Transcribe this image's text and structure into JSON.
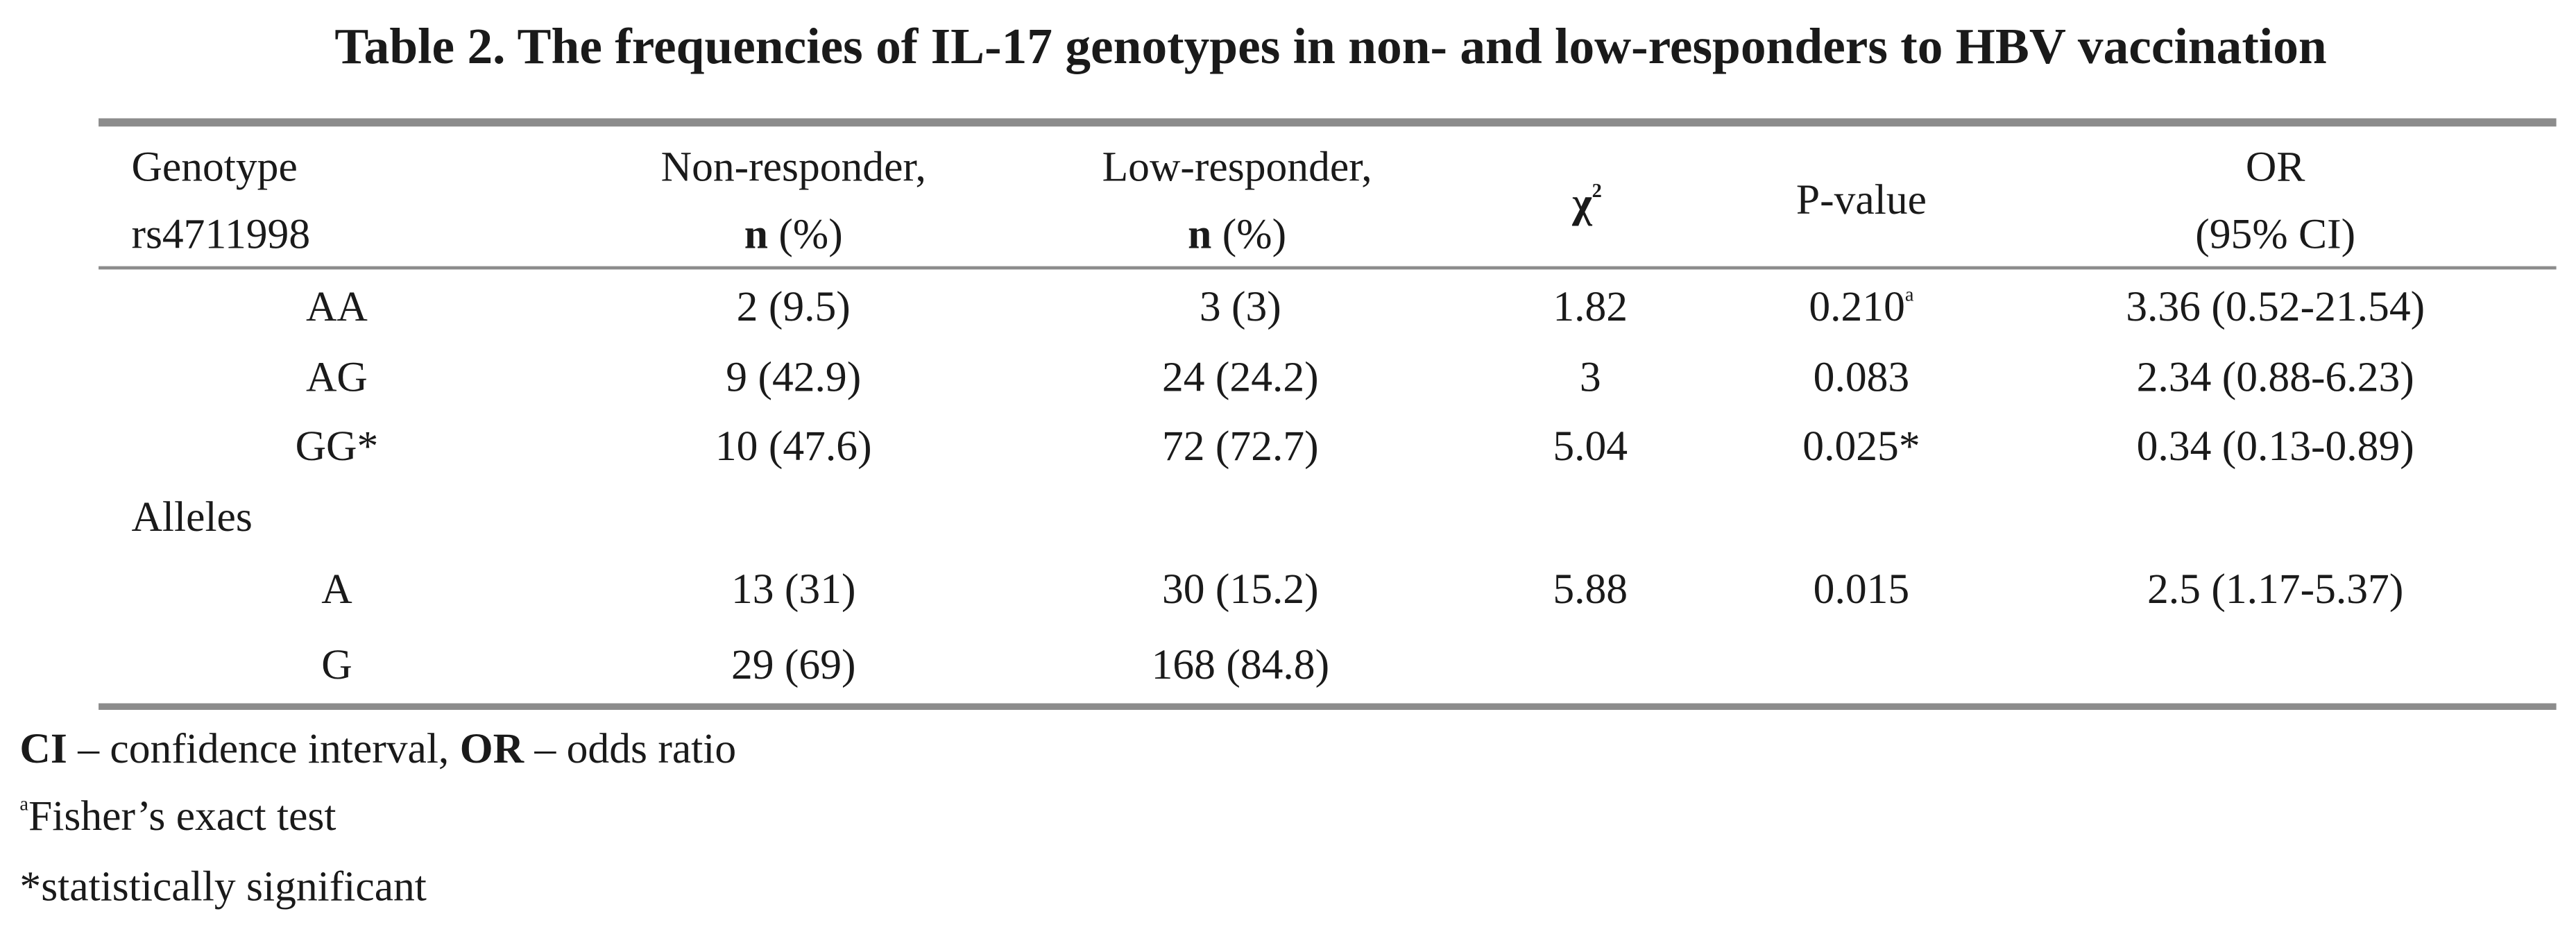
{
  "title": "Table 2. The frequencies of IL-17 genotypes in non- and low-responders to HBV vaccination",
  "header": {
    "genotype": [
      "Genotype",
      "rs4711998"
    ],
    "non": {
      "line1": "Non-responder,",
      "n": "n",
      "pct": "(%)"
    },
    "low": {
      "line1": "Low-responder,",
      "n": "n",
      "pct": "(%)"
    },
    "chi": {
      "symbol": "χ",
      "sup": "2"
    },
    "p": "P-value",
    "or": [
      "OR",
      "(95% CI)"
    ]
  },
  "rows": [
    {
      "genotype": "AA",
      "non": "2 (9.5)",
      "low": "3 (3)",
      "chi": "1.82",
      "p": "0.210",
      "p_sup": "a",
      "or": "3.36 (0.52-21.54)"
    },
    {
      "genotype": "AG",
      "non": "9 (42.9)",
      "low": "24 (24.2)",
      "chi": "3",
      "p": "0.083",
      "or": "2.34 (0.88-6.23)"
    },
    {
      "genotype": "GG*",
      "non": "10 (47.6)",
      "low": "72 (72.7)",
      "chi": "5.04",
      "p": "0.025*",
      "or": "0.34 (0.13-0.89)"
    },
    {
      "section": "Alleles"
    },
    {
      "genotype": "A",
      "non": "13 (31)",
      "low": "30 (15.2)",
      "chi": "5.88",
      "p": "0.015",
      "or": "2.5 (1.17-5.37)"
    },
    {
      "genotype": "G",
      "non": "29 (69)",
      "low": "168 (84.8)"
    }
  ],
  "footnotes": {
    "abbr": [
      {
        "term": "CI",
        "def": "– confidence interval,"
      },
      {
        "term": "OR",
        "def": "– odds ratio"
      }
    ],
    "fisher": {
      "sup": "a",
      "text": "Fisher’s exact test"
    },
    "significant": "*statistically significant"
  }
}
